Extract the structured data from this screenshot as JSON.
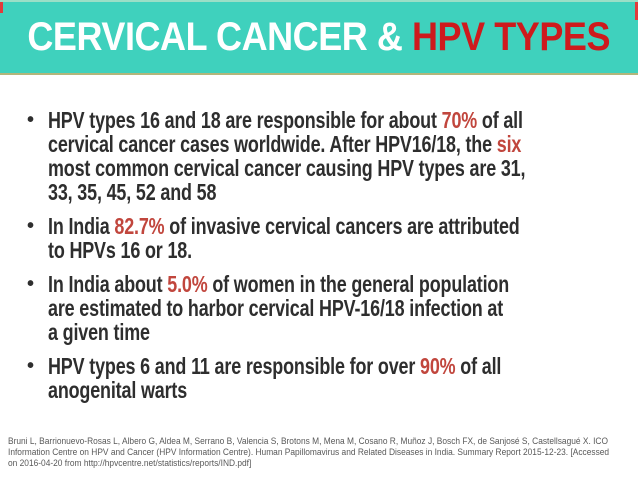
{
  "slide": {
    "title": {
      "part1": "CERVICAL CANCER & ",
      "part2": "HPV TYPES"
    },
    "bullet_char": "•",
    "bullets": [
      {
        "segments": [
          {
            "text": "HPV types 16 and 18 are responsible for about "
          },
          {
            "text": "70%",
            "accent": true
          },
          {
            "text": " of all\ncervical cancer cases worldwide. After HPV16/18, the "
          },
          {
            "text": "six",
            "accent": true
          },
          {
            "text": "\nmost common cervical cancer causing HPV types are 31,\n33, 35, 45, 52 and 58"
          }
        ]
      },
      {
        "segments": [
          {
            "text": "In India "
          },
          {
            "text": "82.7%",
            "accent": true
          },
          {
            "text": " of invasive cervical cancers are attributed\nto HPVs 16 or 18."
          }
        ]
      },
      {
        "segments": [
          {
            "text": "In India about "
          },
          {
            "text": "5.0%",
            "accent": true
          },
          {
            "text": " of women in the general population\nare estimated to harbor cervical HPV-16/18 infection at\na given time"
          }
        ]
      },
      {
        "segments": [
          {
            "text": "HPV types 6 and 11 are responsible for over "
          },
          {
            "text": "90%",
            "accent": true
          },
          {
            "text": " of all\nanogenital warts"
          }
        ]
      }
    ],
    "citation_lines": [
      "Bruni L, Barrionuevo-Rosas L, Albero G, Aldea M, Serrano B, Valencia S, Brotons M, Mena M, Cosano R, Muñoz J, Bosch FX, de Sanjosé S, Castellsagué X. ICO",
      "Information Centre on HPV and Cancer (HPV Information Centre). Human Papillomavirus and Related Diseases in India. Summary Report 2015-12-23. [Accessed",
      "on 2016-04-20 from http://hpvcentre.net/statistics/reports/IND.pdf]"
    ],
    "colors": {
      "banner_teal": "#3fd1bd",
      "banner_top_edge": "#9adfc7",
      "banner_bottom_edge": "#b2b67b",
      "title_white": "#ffffff",
      "title_red": "#ce1a1d",
      "body_text": "#2e2e2e",
      "accent_red": "#c1463d",
      "citation_gray": "#595959",
      "corner_mark_red": "#e23b3b"
    }
  }
}
